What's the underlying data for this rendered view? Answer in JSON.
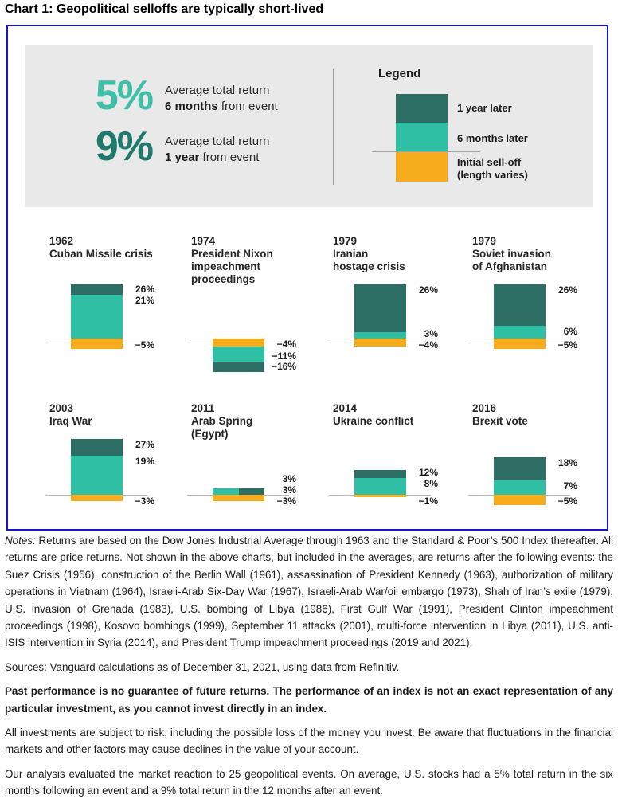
{
  "page_title": "Chart 1: Geopolitical selloffs are typically short-lived",
  "colors": {
    "teal_6m": "#2FBFA4",
    "dark_teal_1y": "#2C6E64",
    "orange_selloff": "#F7AC1D",
    "stat_5_color": "#3EC0A8",
    "stat_9_color": "#1F7A6D",
    "panel_bg": "#E9E9E9",
    "frame_border": "#1612C9",
    "axis_gray": "#BABABA"
  },
  "summary_stats": [
    {
      "value": "5%",
      "line1": "Average total return",
      "bold": "6 months",
      "rest": " from event"
    },
    {
      "value": "9%",
      "line1": "Average total return",
      "bold": "1 year",
      "rest": " from event"
    }
  ],
  "legend": {
    "title": "Legend",
    "items": [
      {
        "label": "1 year later",
        "color": "#2C6E64"
      },
      {
        "label": "6 months later",
        "color": "#2FBFA4"
      },
      {
        "label_line1": "Initial sell-off",
        "label_line2": "(length varies)",
        "color": "#F7AC1D"
      }
    ]
  },
  "chart_data": {
    "type": "bar",
    "unit": "percent price return",
    "series_names": [
      "1 year later",
      "6 months later",
      "Initial sell-off (length varies)"
    ],
    "events": [
      {
        "year": "1962",
        "title_lines": [
          "Cuban Missile crisis"
        ],
        "one_year": 26,
        "six_months": 21,
        "initial_selloff": -5,
        "labels": {
          "one_year": "26%",
          "six_months": "21%",
          "selloff": "−5%"
        }
      },
      {
        "year": "1974",
        "title_lines": [
          "President Nixon",
          "impeachment",
          "proceedings"
        ],
        "one_year": -16,
        "six_months": -11,
        "initial_selloff": -4,
        "labels": {
          "one_year": "−16%",
          "six_months": "−11%",
          "selloff": "−4%"
        }
      },
      {
        "year": "1979",
        "title_lines": [
          "Iranian",
          "hostage crisis"
        ],
        "one_year": 26,
        "six_months": 3,
        "initial_selloff": -4,
        "labels": {
          "one_year": "26%",
          "six_months": "3%",
          "selloff": "−4%"
        }
      },
      {
        "year": "1979",
        "title_lines": [
          "Soviet invasion",
          "of Afghanistan"
        ],
        "one_year": 26,
        "six_months": 6,
        "initial_selloff": -5,
        "labels": {
          "one_year": "26%",
          "six_months": "6%",
          "selloff": "−5%"
        }
      },
      {
        "year": "2003",
        "title_lines": [
          "Iraq War"
        ],
        "one_year": 27,
        "six_months": 19,
        "initial_selloff": -3,
        "labels": {
          "one_year": "27%",
          "six_months": "19%",
          "selloff": "−3%"
        }
      },
      {
        "year": "2011",
        "title_lines": [
          "Arab Spring",
          "(Egypt)"
        ],
        "one_year": 3,
        "six_months": 3,
        "initial_selloff": -3,
        "labels": {
          "one_year": "3%",
          "six_months": "3%",
          "selloff": "−3%"
        }
      },
      {
        "year": "2014",
        "title_lines": [
          "Ukraine conflict"
        ],
        "one_year": 12,
        "six_months": 8,
        "initial_selloff": -1,
        "labels": {
          "one_year": "12%",
          "six_months": "8%",
          "selloff": "−1%"
        }
      },
      {
        "year": "2016",
        "title_lines": [
          "Brexit vote"
        ],
        "one_year": 18,
        "six_months": 7,
        "initial_selloff": -5,
        "labels": {
          "one_year": "18%",
          "six_months": "7%",
          "selloff": "−5%"
        }
      }
    ],
    "averages": {
      "six_months": "5%",
      "one_year": "9%"
    }
  },
  "footnotes": {
    "notes_label": "Notes:",
    "notes_text": " Returns are based on the Dow Jones Industrial Average through 1963 and the Standard & Poor’s 500 Index thereafter. All returns are price returns. Not shown in the above charts, but included in the averages, are returns after the following events: the Suez Crisis (1956), construction of the Berlin Wall (1961), assassination of President Kennedy (1963), authorization of military operations in Vietnam (1964), Israeli-Arab Six-Day War (1967), Israeli-Arab War/oil embargo (1973), Shah of Iran’s exile (1979), U.S. invasion of Grenada (1983), U.S. bombing of Libya (1986), First Gulf War (1991), President Clinton impeachment proceedings (1998), Kosovo bombings (1999), September 11 attacks (2001), multi-force intervention in Libya (2011), U.S. anti-ISIS intervention in Syria (2014), and President Trump impeachment proceedings (2019 and 2021).",
    "sources": "Sources: Vanguard calculations as of December 31, 2021, using data from Refinitiv.",
    "past_performance": "Past performance is no guarantee of future returns. The performance of an index is not an exact representation of any particular investment, as you cannot invest directly in an index.",
    "risk": "All investments are subject to risk, including the possible loss of the money you invest. Be aware that fluctuations in the financial markets and other factors may cause declines in the value of your account.",
    "analysis": "Our analysis evaluated the market reaction to 25 geopolitical events. On average, U.S. stocks had a 5% total return in the six months following an event and a 9% total return in the 12 months after an event."
  }
}
